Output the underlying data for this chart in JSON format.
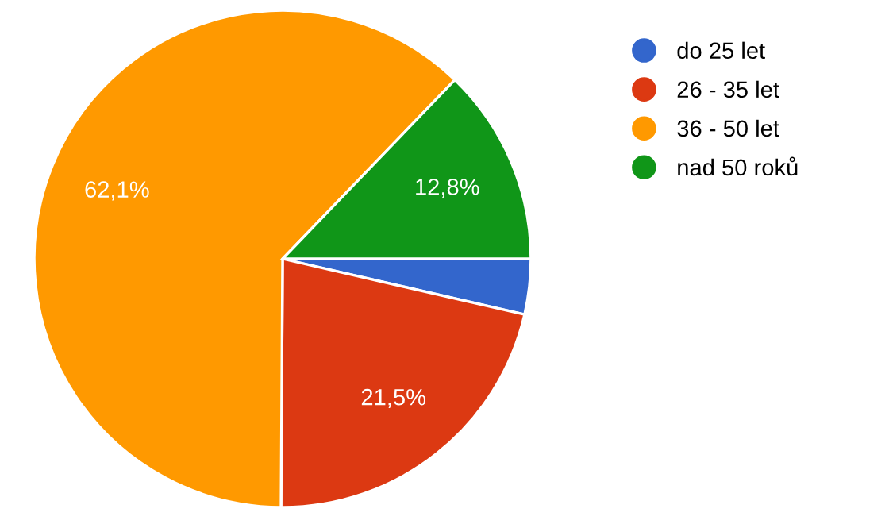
{
  "chart_data": {
    "type": "pie",
    "categories": [
      "do 25 let",
      "26 - 35 let",
      "36 - 50 let",
      "nad 50 roků"
    ],
    "values": [
      3.6,
      21.5,
      62.1,
      12.8
    ],
    "colors": [
      "#3366cc",
      "#dc3912",
      "#ff9900",
      "#109618"
    ],
    "value_labels": [
      null,
      "21,5%",
      "62,1%",
      "12,8%"
    ],
    "legend": "top right"
  }
}
